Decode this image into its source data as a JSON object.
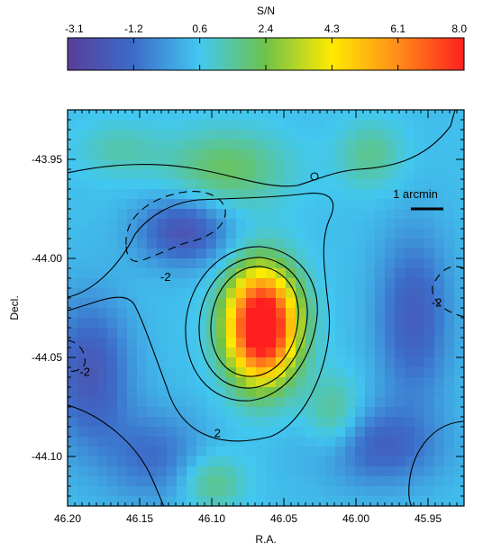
{
  "chart_data": {
    "type": "heatmap",
    "title": "",
    "xlabel": "R.A.",
    "ylabel": "Decl.",
    "x_ticks": [
      "46.20",
      "46.15",
      "46.10",
      "46.05",
      "46.00",
      "45.95"
    ],
    "x_tick_values": [
      46.2,
      46.15,
      46.1,
      46.05,
      46.0,
      45.95
    ],
    "y_ticks": [
      "-43.95",
      "-44.00",
      "-44.05",
      "-44.10"
    ],
    "y_tick_values": [
      -43.95,
      -44.0,
      -44.05,
      -44.1
    ],
    "xlim": [
      46.2,
      45.925
    ],
    "ylim": [
      -44.125,
      -43.925
    ],
    "x_reversed": true,
    "colorbar": {
      "label": "S/N",
      "ticks": [
        "-3.1",
        "-1.2",
        "0.6",
        "2.4",
        "4.3",
        "6.1",
        "8.0"
      ],
      "range": [
        -3.1,
        8.0
      ],
      "colormap": [
        "#5a3d9a",
        "#3c6cc9",
        "#42c8f0",
        "#6ec24a",
        "#ffea00",
        "#ff8c1a",
        "#ff1f1f"
      ]
    },
    "contour_labels": [
      {
        "text": "-2",
        "x": 46.132,
        "y": -44.009
      },
      {
        "text": "-2",
        "x": 45.944,
        "y": -44.022
      },
      {
        "text": "-2",
        "x": 46.188,
        "y": -44.057
      },
      {
        "text": "2",
        "x": 46.096,
        "y": -44.088
      }
    ],
    "scale_bar": {
      "label": "1 arcmin"
    },
    "peak": {
      "x": 46.065,
      "y": -44.034,
      "value": 8.0
    }
  }
}
